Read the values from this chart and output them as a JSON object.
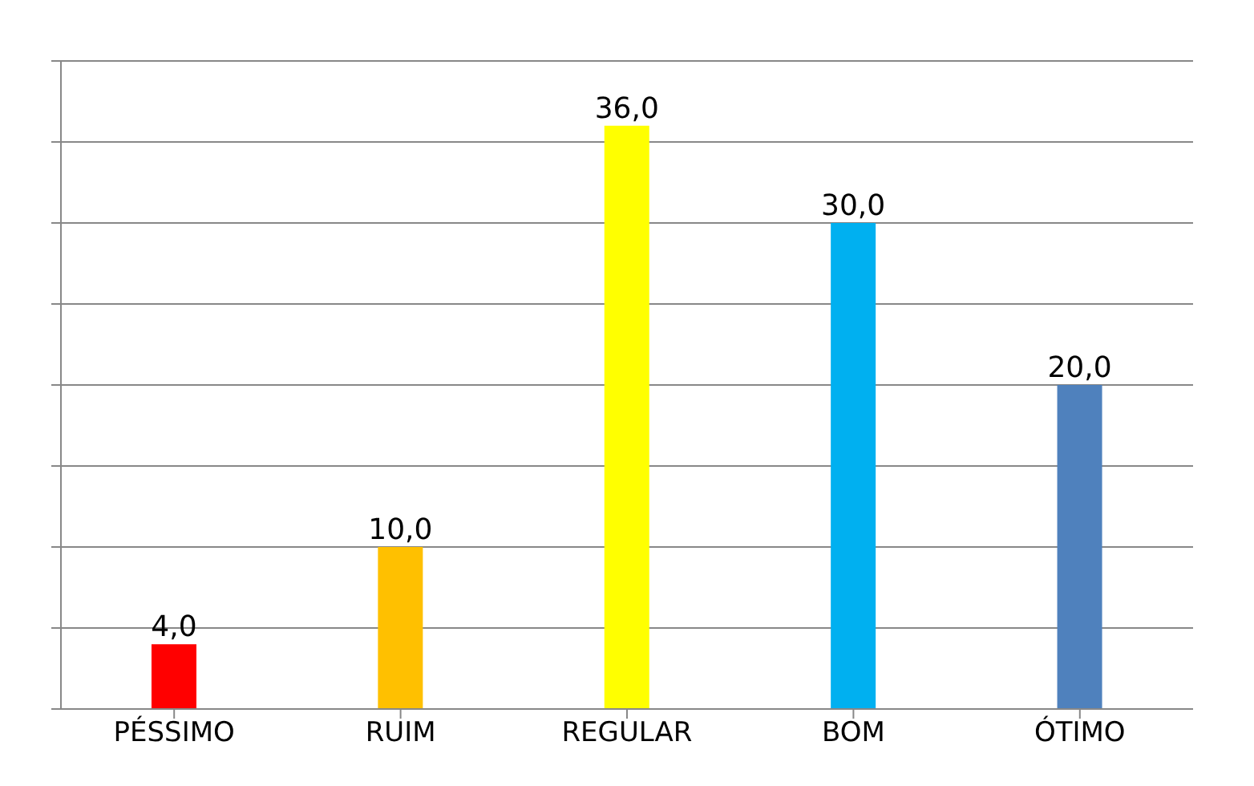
{
  "chart_data": {
    "type": "bar",
    "categories": [
      "PÉSSIMO",
      "RUIM",
      "REGULAR",
      "BOM",
      "ÓTIMO"
    ],
    "values": [
      4,
      10,
      36,
      30,
      20
    ],
    "colors": [
      "#ff0000",
      "#ffc000",
      "#ffff00",
      "#00b0f0",
      "#4f81bd"
    ],
    "value_labels": [
      "4,0",
      "10,0",
      "36,0",
      "30,0",
      "20,0"
    ],
    "ylim": [
      0,
      40
    ],
    "yticks": [
      {
        "value": 0,
        "label": null
      },
      {
        "value": 5,
        "label": null
      },
      {
        "value": 10,
        "label": null
      },
      {
        "value": 15,
        "label": null
      },
      {
        "value": 20,
        "label": null
      },
      {
        "value": 25,
        "label": null
      },
      {
        "value": 30,
        "label": null
      },
      {
        "value": 35,
        "label": null
      },
      {
        "value": 40,
        "label": null
      }
    ],
    "tick_labels": "x",
    "grid": true
  }
}
